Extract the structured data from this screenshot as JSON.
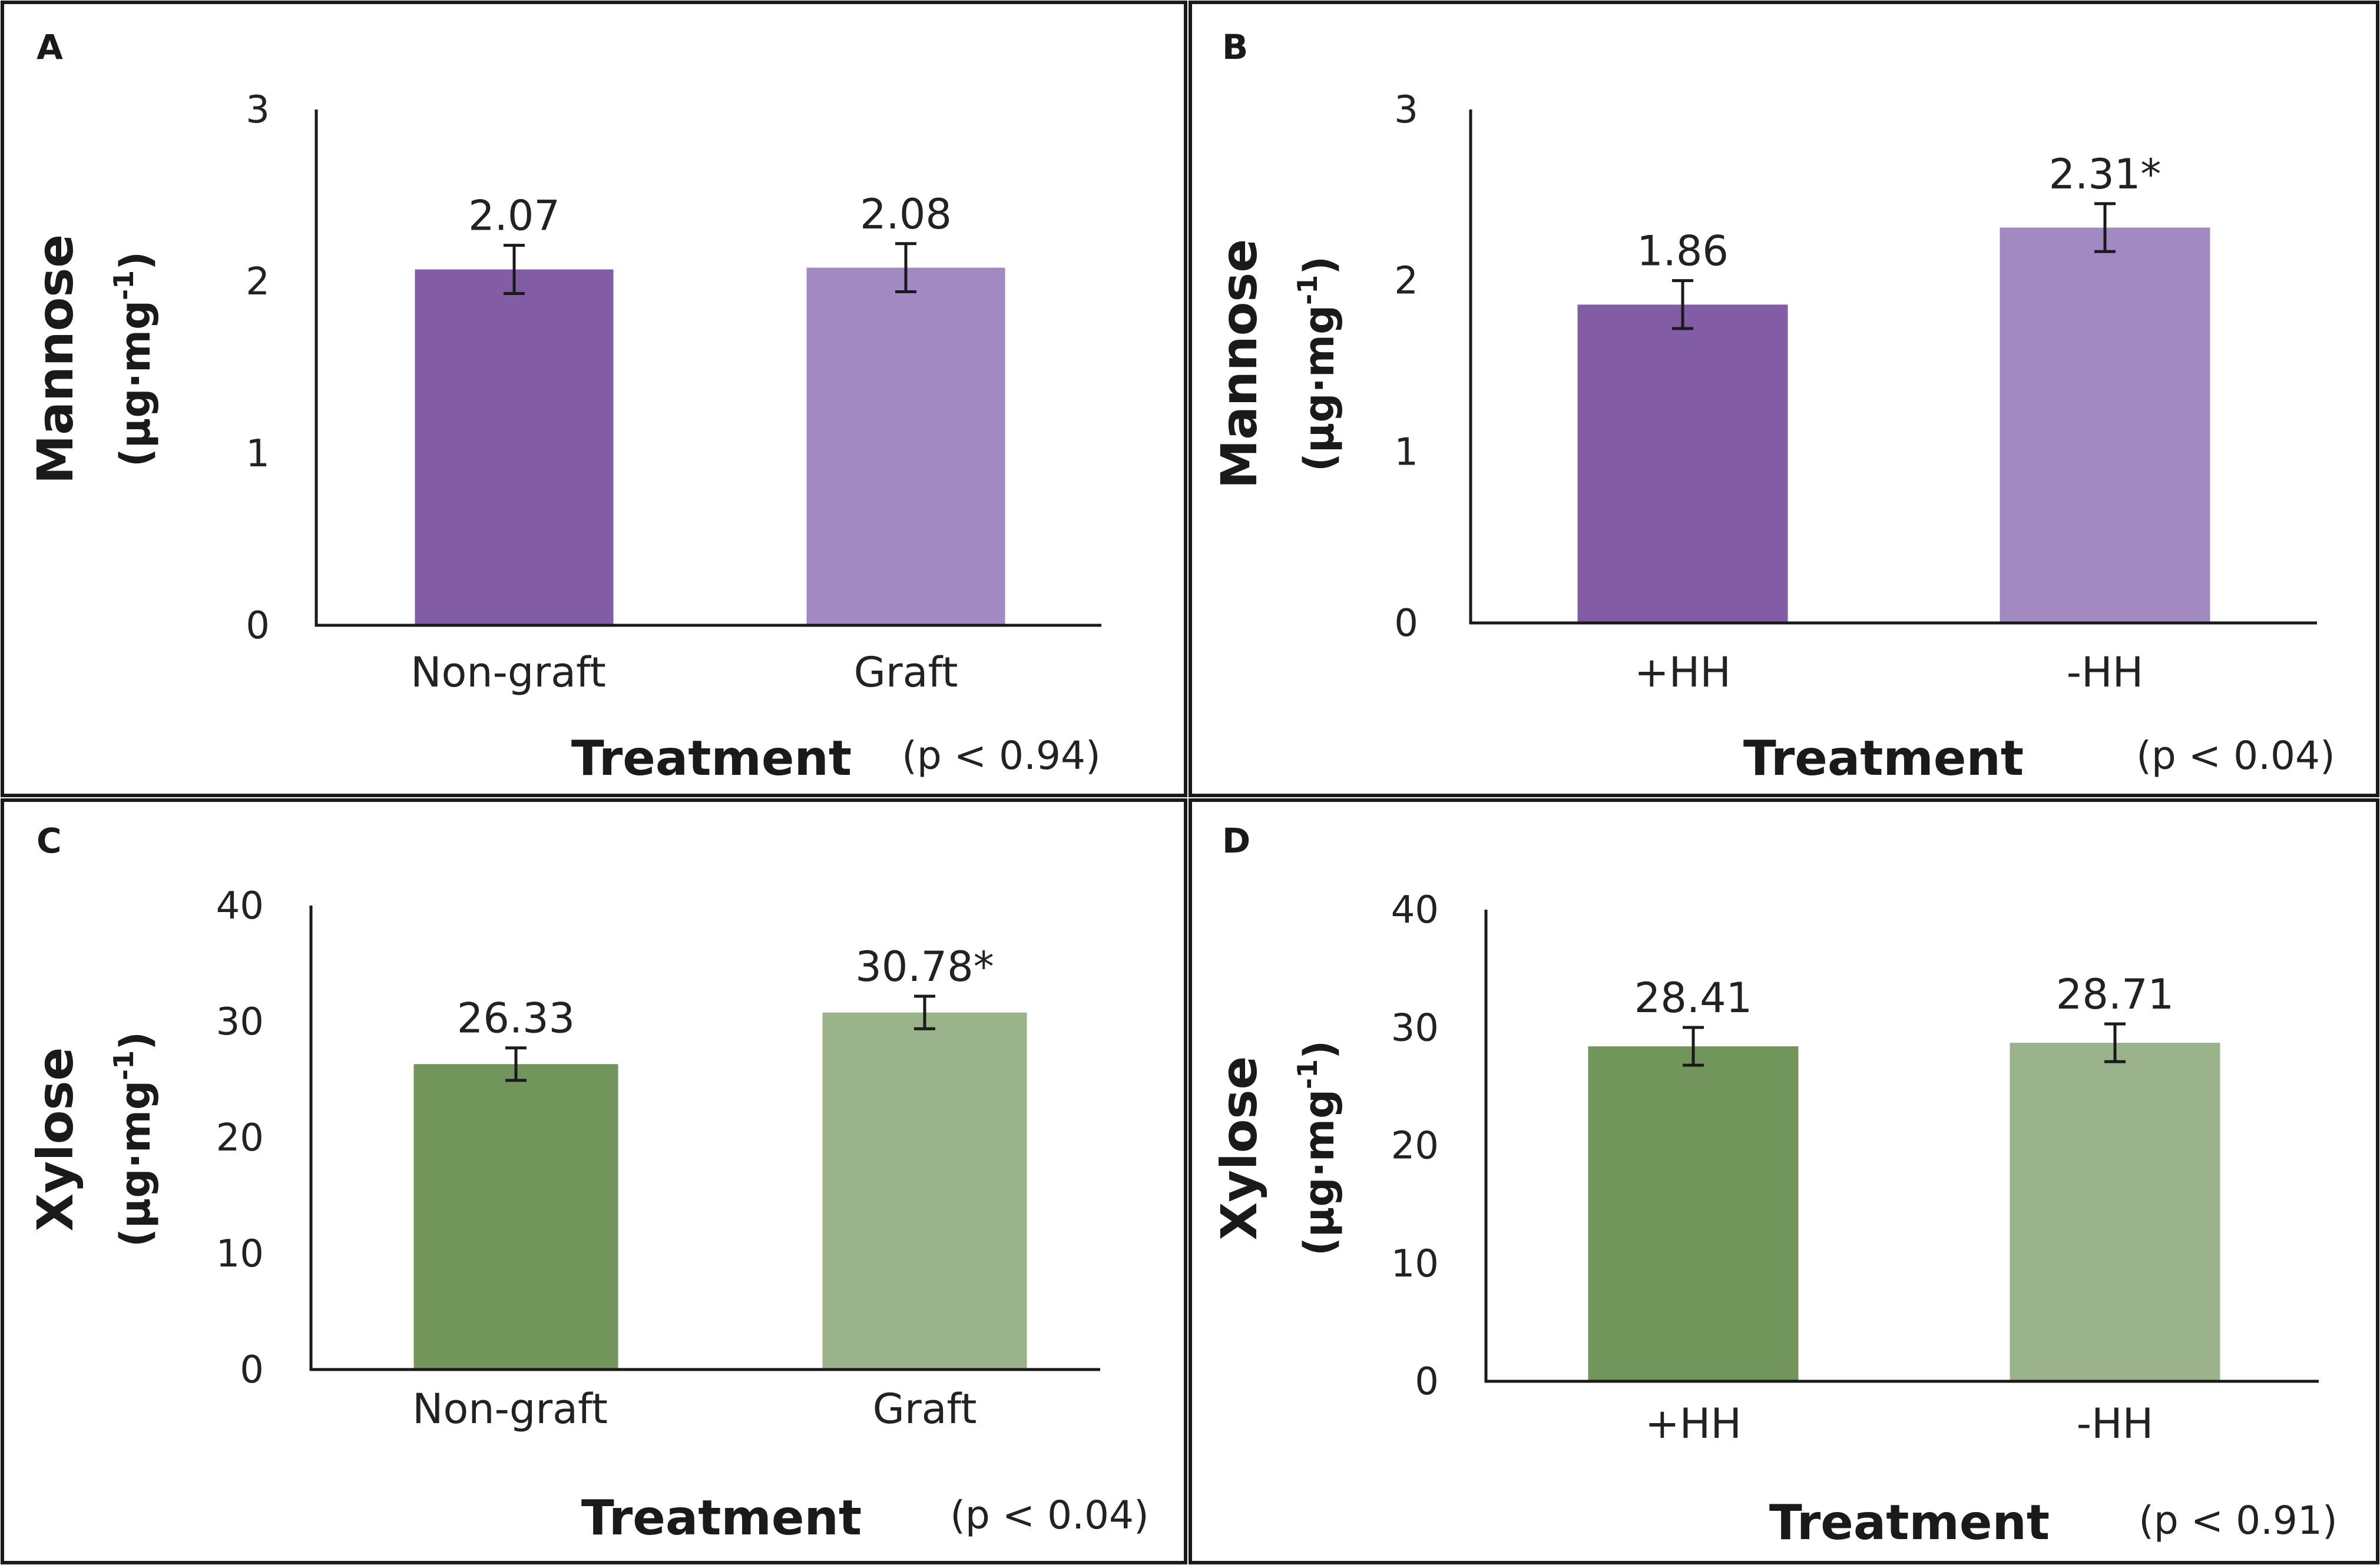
{
  "figure": {
    "y_unit_label": "(µg·mg",
    "y_unit_superscript": "-1",
    "y_unit_close": ")"
  },
  "chart_data": [
    {
      "type": "bar",
      "panel": "A",
      "categories": [
        "Non-graft",
        "Graft"
      ],
      "values": [
        2.07,
        2.08
      ],
      "errors": [
        0.14,
        0.14
      ],
      "value_labels": [
        "2.07",
        "2.08"
      ],
      "ylabel": "Mannose",
      "xlabel": "Treatment",
      "p_value": "(p < 0.94)",
      "ylim": [
        0,
        3
      ],
      "yticks": [
        0,
        1,
        2,
        3
      ],
      "colors": [
        "#825ca4",
        "#a389c1"
      ]
    },
    {
      "type": "bar",
      "panel": "B",
      "categories": [
        "+HH",
        "-HH"
      ],
      "values": [
        1.86,
        2.31
      ],
      "errors": [
        0.14,
        0.14
      ],
      "value_labels": [
        "1.86",
        "2.31*"
      ],
      "ylabel": "Mannose",
      "xlabel": "Treatment",
      "p_value": "(p < 0.04)",
      "ylim": [
        0,
        3
      ],
      "yticks": [
        0,
        1,
        2,
        3
      ],
      "colors": [
        "#825ca4",
        "#a389c1"
      ]
    },
    {
      "type": "bar",
      "panel": "C",
      "categories": [
        "Non-graft",
        "Graft"
      ],
      "values": [
        26.33,
        30.78
      ],
      "errors": [
        1.4,
        1.4
      ],
      "value_labels": [
        "26.33",
        "30.78*"
      ],
      "ylabel": "Xylose",
      "xlabel": "Treatment",
      "p_value": "(p < 0.04)",
      "ylim": [
        0,
        40
      ],
      "yticks": [
        0,
        10,
        20,
        30,
        40
      ],
      "colors": [
        "#71955b",
        "#9bb38a"
      ]
    },
    {
      "type": "bar",
      "panel": "D",
      "categories": [
        "+HH",
        "-HH"
      ],
      "values": [
        28.41,
        28.71
      ],
      "errors": [
        1.6,
        1.6
      ],
      "value_labels": [
        "28.41",
        "28.71"
      ],
      "ylabel": "Xylose",
      "xlabel": "Treatment",
      "p_value": "(p < 0.91)",
      "ylim": [
        0,
        40
      ],
      "yticks": [
        0,
        10,
        20,
        30,
        40
      ],
      "colors": [
        "#71955b",
        "#9bb38a"
      ]
    }
  ]
}
